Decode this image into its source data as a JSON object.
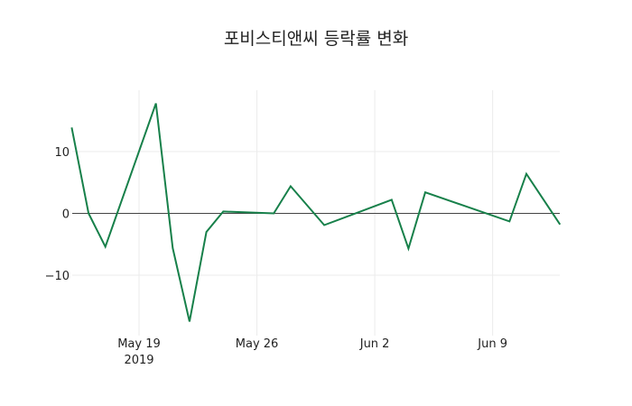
{
  "chart_data": {
    "type": "line",
    "title": "포비스티앤씨 등락률 변화",
    "xlabel": "",
    "ylabel": "",
    "x": [
      "2019-05-15",
      "2019-05-16",
      "2019-05-17",
      "2019-05-20",
      "2019-05-21",
      "2019-05-22",
      "2019-05-23",
      "2019-05-24",
      "2019-05-27",
      "2019-05-28",
      "2019-05-30",
      "2019-06-03",
      "2019-06-04",
      "2019-06-05",
      "2019-06-10",
      "2019-06-11",
      "2019-06-13"
    ],
    "series": [
      {
        "name": "등락률",
        "color": "#17804a",
        "values": [
          13.9,
          0.0,
          -5.4,
          17.8,
          -5.6,
          -17.5,
          -3.0,
          0.3,
          0.0,
          4.4,
          -1.9,
          2.2,
          -5.7,
          3.4,
          -1.3,
          6.4,
          -1.8
        ]
      }
    ],
    "ylim": [
      -18.5,
      19.5
    ],
    "yticks": [
      10,
      0,
      -10
    ],
    "ytick_labels": [
      "10",
      "0",
      "−10"
    ],
    "xticks": [
      "2019-05-19",
      "2019-05-26",
      "2019-06-02",
      "2019-06-09"
    ],
    "xtick_labels": [
      "May 19\n2019",
      "May 26",
      "Jun 2",
      "Jun 9"
    ],
    "grid": true,
    "zeroline": true,
    "legend": "none"
  },
  "header": {
    "title": "포비스티앤씨 등락률 변화"
  }
}
